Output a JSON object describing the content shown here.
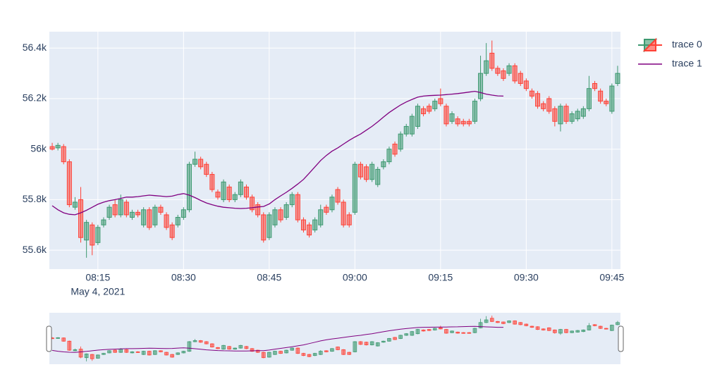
{
  "chart_data": {
    "type": "candlestick",
    "x_date": "May 4, 2021",
    "xlim": [
      "08:06:30",
      "09:46:30"
    ],
    "xticks": [
      "08:15",
      "08:30",
      "08:45",
      "09:00",
      "09:15",
      "09:30",
      "09:45"
    ],
    "ylim": [
      55525,
      56465
    ],
    "yticks": [
      {
        "value": 55600,
        "label": "55.6k"
      },
      {
        "value": 55800,
        "label": "55.8k"
      },
      {
        "value": 56000,
        "label": "56k"
      },
      {
        "value": 56200,
        "label": "56.2k"
      },
      {
        "value": 56400,
        "label": "56.4k"
      }
    ],
    "grid": true,
    "legend": "top-right",
    "range_slider": true,
    "series": [
      {
        "name": "trace 0",
        "type": "candlestick",
        "increasing_color": "#3D9970",
        "decreasing_color": "#FF4136",
        "x": [
          "08:07",
          "08:08",
          "08:09",
          "08:10",
          "08:11",
          "08:12",
          "08:13",
          "08:14",
          "08:15",
          "08:16",
          "08:17",
          "08:18",
          "08:19",
          "08:20",
          "08:21",
          "08:22",
          "08:23",
          "08:24",
          "08:25",
          "08:26",
          "08:27",
          "08:28",
          "08:29",
          "08:30",
          "08:31",
          "08:32",
          "08:33",
          "08:34",
          "08:35",
          "08:36",
          "08:37",
          "08:38",
          "08:39",
          "08:40",
          "08:41",
          "08:42",
          "08:43",
          "08:44",
          "08:45",
          "08:46",
          "08:47",
          "08:48",
          "08:49",
          "08:50",
          "08:51",
          "08:52",
          "08:53",
          "08:54",
          "08:55",
          "08:56",
          "08:57",
          "08:58",
          "08:59",
          "09:00",
          "09:01",
          "09:02",
          "09:03",
          "09:04",
          "09:05",
          "09:06",
          "09:07",
          "09:08",
          "09:09",
          "09:10",
          "09:11",
          "09:12",
          "09:13",
          "09:14",
          "09:15",
          "09:16",
          "09:17",
          "09:18",
          "09:19",
          "09:20",
          "09:21",
          "09:22",
          "09:23",
          "09:24",
          "09:25",
          "09:26",
          "09:27",
          "09:28",
          "09:29",
          "09:30",
          "09:31",
          "09:32",
          "09:33",
          "09:34",
          "09:35",
          "09:36",
          "09:37",
          "09:38",
          "09:39",
          "09:40",
          "09:41",
          "09:42",
          "09:43",
          "09:44",
          "09:45",
          "09:46"
        ],
        "open": [
          56010,
          56005,
          56010,
          55950,
          55770,
          55800,
          55640,
          55700,
          55630,
          55700,
          55730,
          55780,
          55740,
          55790,
          55730,
          55750,
          55700,
          55760,
          55700,
          55770,
          55740,
          55700,
          55700,
          55730,
          55760,
          55940,
          55960,
          55940,
          55900,
          55830,
          55800,
          55850,
          55800,
          55820,
          55850,
          55810,
          55780,
          55740,
          55650,
          55700,
          55760,
          55730,
          55780,
          55820,
          55720,
          55700,
          55680,
          55700,
          55770,
          55760,
          55840,
          55790,
          55740,
          55750,
          55940,
          55930,
          55880,
          55860,
          55930,
          55950,
          56020,
          56000,
          56060,
          56060,
          56090,
          56160,
          56170,
          56160,
          56200,
          56170,
          56110,
          56120,
          56110,
          56110,
          56110,
          56200,
          56300,
          56380,
          56320,
          56310,
          56300,
          56330,
          56300,
          56270,
          56230,
          56220,
          56180,
          56200,
          56160,
          56100,
          56170,
          56110,
          56120,
          56130,
          56160,
          56260,
          56230,
          56190,
          56150,
          56260
        ],
        "high": [
          56025,
          56025,
          56020,
          55960,
          55810,
          55850,
          55720,
          55710,
          55700,
          55730,
          55780,
          55800,
          55820,
          55800,
          55760,
          55760,
          55770,
          55770,
          55780,
          55780,
          55750,
          55710,
          55740,
          55770,
          55950,
          55990,
          55970,
          55950,
          55910,
          55840,
          55880,
          55860,
          55830,
          55880,
          55860,
          55820,
          55790,
          55750,
          55750,
          55770,
          55770,
          55790,
          55830,
          55830,
          55730,
          55710,
          55730,
          55780,
          55780,
          55820,
          55850,
          55800,
          55750,
          55950,
          55950,
          55940,
          55950,
          55930,
          55960,
          56010,
          56030,
          56070,
          56100,
          56140,
          56180,
          56170,
          56180,
          56200,
          56240,
          56180,
          56150,
          56130,
          56120,
          56120,
          56200,
          56370,
          56420,
          56430,
          56330,
          56320,
          56340,
          56340,
          56310,
          56280,
          56240,
          56230,
          56190,
          56210,
          56170,
          56180,
          56180,
          56150,
          56160,
          56170,
          56290,
          56270,
          56240,
          56200,
          56260,
          56330
        ],
        "low": [
          55995,
          55995,
          55940,
          55770,
          55760,
          55630,
          55570,
          55580,
          55620,
          55690,
          55720,
          55730,
          55730,
          55730,
          55720,
          55730,
          55690,
          55680,
          55690,
          55740,
          55680,
          55640,
          55690,
          55720,
          55750,
          55930,
          55920,
          55890,
          55830,
          55800,
          55790,
          55790,
          55790,
          55810,
          55800,
          55750,
          55730,
          55630,
          55640,
          55690,
          55710,
          55720,
          55770,
          55710,
          55670,
          55650,
          55670,
          55690,
          55740,
          55750,
          55780,
          55690,
          55690,
          55740,
          55880,
          55870,
          55870,
          55850,
          55920,
          55940,
          55970,
          55990,
          56050,
          56050,
          56080,
          56130,
          56140,
          56150,
          56170,
          56090,
          56100,
          56090,
          56090,
          56090,
          56100,
          56190,
          56290,
          56310,
          56290,
          56270,
          56290,
          56260,
          56250,
          56230,
          56200,
          56160,
          56150,
          56140,
          56090,
          56070,
          56100,
          56100,
          56110,
          56120,
          56150,
          56230,
          56180,
          56170,
          56140,
          56250
        ],
        "close": [
          56000,
          56015,
          55950,
          55780,
          55790,
          55650,
          55710,
          55620,
          55690,
          55720,
          55770,
          55740,
          55800,
          55740,
          55750,
          55740,
          55760,
          55690,
          55770,
          55750,
          55690,
          55650,
          55730,
          55760,
          55940,
          55960,
          55930,
          55900,
          55840,
          55810,
          55870,
          55800,
          55820,
          55870,
          55810,
          55760,
          55740,
          55640,
          55740,
          55760,
          55720,
          55780,
          55820,
          55720,
          55680,
          55660,
          55720,
          55760,
          55750,
          55810,
          55790,
          55700,
          55700,
          55940,
          55890,
          55880,
          55940,
          55920,
          55950,
          56000,
          55980,
          56060,
          56090,
          56130,
          56170,
          56140,
          56150,
          56190,
          56180,
          56100,
          56140,
          56100,
          56100,
          56100,
          56190,
          56300,
          56350,
          56320,
          56300,
          56280,
          56330,
          56270,
          56260,
          56240,
          56210,
          56170,
          56160,
          56150,
          56110,
          56170,
          56110,
          56140,
          56150,
          56160,
          56240,
          56240,
          56190,
          56180,
          56250,
          56300
        ]
      },
      {
        "name": "trace 1",
        "type": "line",
        "color": "#800080",
        "x": [
          "08:07",
          "08:08",
          "08:09",
          "08:10",
          "08:11",
          "08:12",
          "08:13",
          "08:14",
          "08:15",
          "08:16",
          "08:17",
          "08:18",
          "08:19",
          "08:20",
          "08:21",
          "08:22",
          "08:23",
          "08:24",
          "08:25",
          "08:26",
          "08:27",
          "08:28",
          "08:29",
          "08:30",
          "08:31",
          "08:32",
          "08:33",
          "08:34",
          "08:35",
          "08:36",
          "08:37",
          "08:38",
          "08:39",
          "08:40",
          "08:41",
          "08:42",
          "08:43",
          "08:44",
          "08:45",
          "08:46",
          "08:47",
          "08:48",
          "08:49",
          "08:50",
          "08:51",
          "08:52",
          "08:53",
          "08:54",
          "08:55",
          "08:56",
          "08:57",
          "08:58",
          "08:59",
          "09:00",
          "09:01",
          "09:02",
          "09:03",
          "09:04",
          "09:05",
          "09:06",
          "09:07",
          "09:08",
          "09:09",
          "09:10",
          "09:11",
          "09:12",
          "09:13",
          "09:14",
          "09:15",
          "09:16",
          "09:17",
          "09:18",
          "09:19",
          "09:20",
          "09:21",
          "09:22",
          "09:23",
          "09:24",
          "09:25",
          "09:26"
        ],
        "values": [
          55776,
          55760,
          55748,
          55742,
          55740,
          55748,
          55758,
          55770,
          55782,
          55790,
          55796,
          55800,
          55805,
          55810,
          55810,
          55812,
          55815,
          55818,
          55816,
          55814,
          55812,
          55814,
          55820,
          55824,
          55818,
          55808,
          55797,
          55787,
          55780,
          55774,
          55770,
          55768,
          55766,
          55765,
          55766,
          55768,
          55771,
          55773,
          55783,
          55800,
          55815,
          55829,
          55845,
          55862,
          55880,
          55905,
          55930,
          55955,
          55975,
          55992,
          56005,
          56020,
          56035,
          56048,
          56060,
          56075,
          56090,
          56108,
          56127,
          56145,
          56160,
          56175,
          56187,
          56197,
          56206,
          56210,
          56212,
          56213,
          56214,
          56216,
          56218,
          56220,
          56223,
          56226,
          56229,
          56224,
          56218,
          56214,
          56211,
          56210
        ]
      }
    ]
  }
}
